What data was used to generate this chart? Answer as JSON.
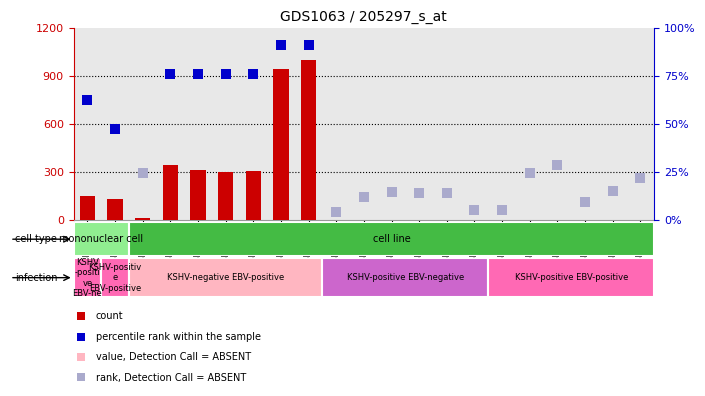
{
  "title": "GDS1063 / 205297_s_at",
  "samples": [
    "GSM38791",
    "GSM38789",
    "GSM38790",
    "GSM38802",
    "GSM38803",
    "GSM38804",
    "GSM38805",
    "GSM38808",
    "GSM38809",
    "GSM38796",
    "GSM38797",
    "GSM38800",
    "GSM38801",
    "GSM38806",
    "GSM38807",
    "GSM38792",
    "GSM38793",
    "GSM38794",
    "GSM38795",
    "GSM38798",
    "GSM38799"
  ],
  "count_values": [
    150,
    130,
    10,
    340,
    310,
    300,
    305,
    940,
    1000,
    5,
    5,
    5,
    5,
    5,
    5,
    5,
    5,
    5,
    5,
    5,
    5
  ],
  "count_absent": [
    false,
    false,
    false,
    false,
    false,
    false,
    false,
    false,
    false,
    true,
    true,
    true,
    true,
    true,
    true,
    true,
    true,
    true,
    true,
    true,
    true
  ],
  "percentile_left_values": [
    750,
    565,
    290,
    910,
    910,
    910,
    910,
    1090,
    1090,
    50,
    145,
    175,
    165,
    165,
    60,
    60,
    290,
    340,
    110,
    180,
    260
  ],
  "percentile_absent": [
    false,
    false,
    true,
    false,
    false,
    false,
    false,
    false,
    false,
    true,
    true,
    true,
    true,
    true,
    true,
    true,
    true,
    true,
    true,
    true,
    true
  ],
  "ylim_left": [
    0,
    1200
  ],
  "ylim_right": [
    0,
    100
  ],
  "yticks_left": [
    0,
    300,
    600,
    900,
    1200
  ],
  "ytick_labels_left": [
    "0",
    "300",
    "600",
    "900",
    "1200"
  ],
  "yticks_right": [
    0,
    25,
    50,
    75,
    100
  ],
  "ytick_labels_right": [
    "0%",
    "25%",
    "50%",
    "75%",
    "100%"
  ],
  "bar_color": "#CC0000",
  "percentile_color_present": "#0000CC",
  "percentile_color_absent": "#AAAACC",
  "count_absent_color": "#FFB6C1",
  "bg_color": "#E8E8E8",
  "left_axis_color": "#CC0000",
  "right_axis_color": "#0000CC",
  "marker_size": 7,
  "cell_type_groups": [
    {
      "label": "mononuclear cell",
      "start": 0,
      "end": 1,
      "color": "#90EE90"
    },
    {
      "label": "cell line",
      "start": 2,
      "end": 20,
      "color": "#44BB44"
    }
  ],
  "infection_groups": [
    {
      "label": "KSHV\n-positi\nve\nEBV-ne",
      "start": 0,
      "end": 0,
      "color": "#FF69B4"
    },
    {
      "label": "KSHV-positiv\ne\nEBV-positive",
      "start": 1,
      "end": 1,
      "color": "#FF69B4"
    },
    {
      "label": "KSHV-negative EBV-positive",
      "start": 2,
      "end": 8,
      "color": "#FFB6C1"
    },
    {
      "label": "KSHV-positive EBV-negative",
      "start": 9,
      "end": 14,
      "color": "#CC66CC"
    },
    {
      "label": "KSHV-positive EBV-positive",
      "start": 15,
      "end": 20,
      "color": "#FF69B4"
    }
  ]
}
